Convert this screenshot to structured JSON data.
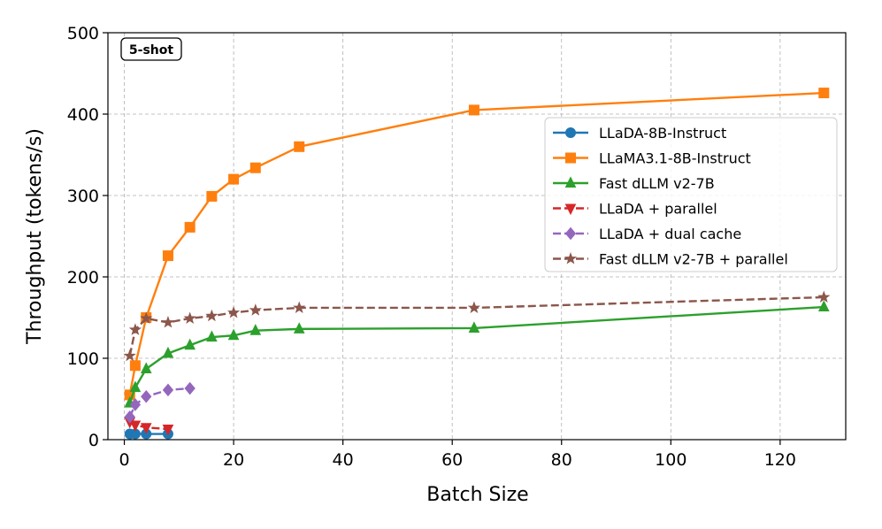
{
  "chart_data": {
    "type": "line",
    "title": "",
    "badge": "5-shot",
    "xlabel": "Batch Size",
    "ylabel": "Throughput (tokens/s)",
    "xlim": [
      -3,
      132
    ],
    "ylim": [
      0,
      500
    ],
    "xticks": [
      0,
      20,
      40,
      60,
      80,
      100,
      120
    ],
    "yticks": [
      0,
      100,
      200,
      300,
      400,
      500
    ],
    "grid": true,
    "legend_position": "center-right",
    "series": [
      {
        "name": "LLaDA-8B-Instruct",
        "color": "#1f77b4",
        "marker": "circle",
        "dashed": false,
        "x": [
          1,
          2,
          4,
          8
        ],
        "y": [
          7,
          7,
          7,
          7
        ]
      },
      {
        "name": "LLaMA3.1-8B-Instruct",
        "color": "#ff7f0e",
        "marker": "square",
        "dashed": false,
        "x": [
          1,
          2,
          4,
          8,
          12,
          16,
          20,
          24,
          32,
          64,
          128
        ],
        "y": [
          55,
          91,
          150,
          226,
          261,
          299,
          320,
          334,
          360,
          405,
          426
        ]
      },
      {
        "name": "Fast dLLM v2-7B",
        "color": "#2ca02c",
        "marker": "triangle-up",
        "dashed": false,
        "x": [
          1,
          2,
          4,
          8,
          12,
          16,
          20,
          24,
          32,
          64,
          128
        ],
        "y": [
          45,
          64,
          87,
          106,
          116,
          126,
          128,
          134,
          136,
          137,
          163
        ]
      },
      {
        "name": "LLaDA + parallel",
        "color": "#d62728",
        "marker": "triangle-down",
        "dashed": true,
        "x": [
          1,
          2,
          4,
          8
        ],
        "y": [
          22,
          18,
          15,
          13
        ]
      },
      {
        "name": "LLaDA + dual cache",
        "color": "#9467bd",
        "marker": "diamond",
        "dashed": true,
        "x": [
          1,
          2,
          4,
          8,
          12
        ],
        "y": [
          28,
          43,
          53,
          61,
          63
        ]
      },
      {
        "name": "Fast dLLM v2-7B + parallel",
        "color": "#8c564b",
        "marker": "star",
        "dashed": true,
        "x": [
          1,
          2,
          4,
          8,
          12,
          16,
          20,
          24,
          32,
          64,
          128
        ],
        "y": [
          103,
          135,
          149,
          144,
          149,
          152,
          156,
          159,
          162,
          162,
          175
        ]
      }
    ]
  }
}
